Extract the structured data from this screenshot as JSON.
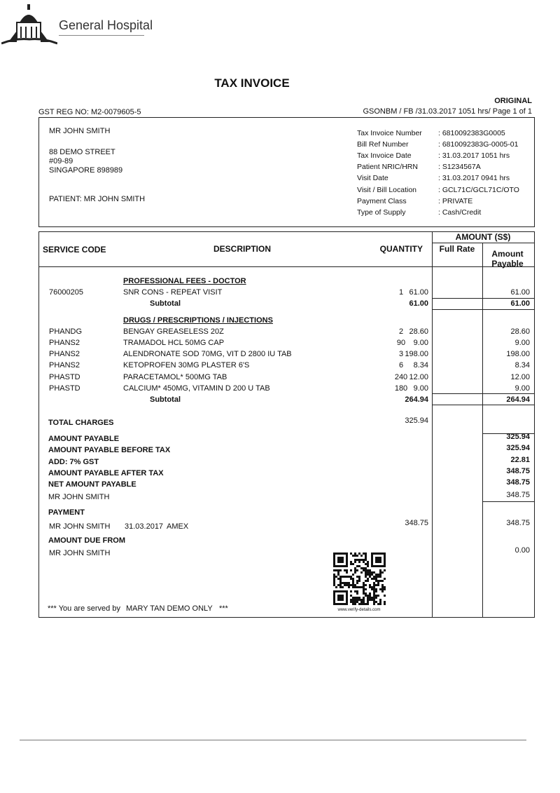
{
  "header": {
    "hospital_name": "General Hospital",
    "title": "TAX INVOICE",
    "copy_label": "ORIGINAL",
    "gst_reg": "GST REG NO: M2-0079605-5",
    "reference": "GSONBM / FB /31.03.2017 1051 hrs/ Page 1 of 1"
  },
  "address": {
    "lines": [
      "MR JOHN SMITH",
      "88 DEMO STREET",
      "#09-89",
      "SINGAPORE 898989"
    ],
    "patient": "PATIENT: MR JOHN SMITH"
  },
  "details": [
    {
      "label": "Tax Invoice Number",
      "value": ": 6810092383G0005"
    },
    {
      "label": "Bill Ref Number",
      "value": ": 6810092383G-0005-01"
    },
    {
      "label": "Tax Invoice Date",
      "value": ": 31.03.2017 1051 hrs"
    },
    {
      "label": "Patient NRIC/HRN",
      "value": ": S1234567A"
    },
    {
      "label": "Visit Date",
      "value": ": 31.03.2017 0941 hrs"
    },
    {
      "label": "Visit / Bill Location",
      "value": ": GCL71C/GCL71C/OTO"
    },
    {
      "label": "Payment Class",
      "value": ": PRIVATE"
    },
    {
      "label": "Type of Supply",
      "value": ": Cash/Credit"
    }
  ],
  "table": {
    "headers": {
      "service_code": "SERVICE CODE",
      "description": "DESCRIPTION",
      "quantity": "QUANTITY",
      "amount": "AMOUNT (S$)",
      "full_rate": "Full Rate",
      "amount_payable": "Amount Payable"
    },
    "sections": [
      {
        "title": "PROFESSIONAL FEES - DOCTOR",
        "items": [
          {
            "code": "76000205",
            "description": "SNR CONS - REPEAT VISIT",
            "quantity": "1",
            "full_rate": "61.00",
            "amount": "61.00"
          }
        ],
        "subtotal_label": "Subtotal",
        "subtotal_full_rate": "61.00",
        "subtotal_amount": "61.00"
      },
      {
        "title": "DRUGS / PRESCRIPTIONS / INJECTIONS",
        "items": [
          {
            "code": "PHANDG",
            "description": "BENGAY GREASELESS 20Z",
            "quantity": "2",
            "full_rate": "28.60",
            "amount": "28.60"
          },
          {
            "code": "PHANS2",
            "description": "TRAMADOL HCL 50MG CAP",
            "quantity": "90",
            "full_rate": "9.00",
            "amount": "9.00"
          },
          {
            "code": "PHANS2",
            "description": "ALENDRONATE SOD 70MG, VIT D 2800 IU TAB",
            "quantity": "3",
            "full_rate": "198.00",
            "amount": "198.00"
          },
          {
            "code": "PHANS2",
            "description": "KETOPROFEN 30MG PLASTER 6'S",
            "quantity": "6",
            "full_rate": "8.34",
            "amount": "8.34"
          },
          {
            "code": "PHASTD",
            "description": "PARACETAMOL* 500MG TAB",
            "quantity": "240",
            "full_rate": "12.00",
            "amount": "12.00"
          },
          {
            "code": "PHASTD",
            "description": "CALCIUM* 450MG, VITAMIN D 200 U TAB",
            "quantity": "180",
            "full_rate": "9.00",
            "amount": "9.00"
          }
        ],
        "subtotal_label": "Subtotal",
        "subtotal_full_rate": "264.94",
        "subtotal_amount": "264.94"
      }
    ]
  },
  "summary": {
    "total_charges_label": "TOTAL CHARGES",
    "total_charges": "325.94",
    "rows": [
      {
        "label": "AMOUNT PAYABLE",
        "amount": "325.94",
        "bold": true
      },
      {
        "label": "AMOUNT PAYABLE BEFORE TAX",
        "amount": "325.94",
        "bold": true
      },
      {
        "label": "ADD: 7% GST",
        "amount": "22.81",
        "bold": true
      },
      {
        "label": "AMOUNT PAYABLE AFTER TAX",
        "amount": "348.75",
        "bold": true
      },
      {
        "label": "NET AMOUNT PAYABLE",
        "amount": "348.75",
        "bold": true
      },
      {
        "label": "MR JOHN SMITH",
        "amount": "348.75",
        "bold": false
      }
    ]
  },
  "payment": {
    "label": "PAYMENT",
    "payer": "MR JOHN SMITH",
    "date": "31.03.2017",
    "method": "AMEX",
    "paid": "348.75",
    "amount": "348.75"
  },
  "amount_due": {
    "label": "AMOUNT DUE FROM",
    "name": "MR JOHN SMITH",
    "amount": "0.00"
  },
  "footer": {
    "served_prefix": "*** You are served by",
    "staff": "MARY TAN DEMO ONLY",
    "served_suffix": "***",
    "qr_caption": "www.verify-details.com"
  }
}
